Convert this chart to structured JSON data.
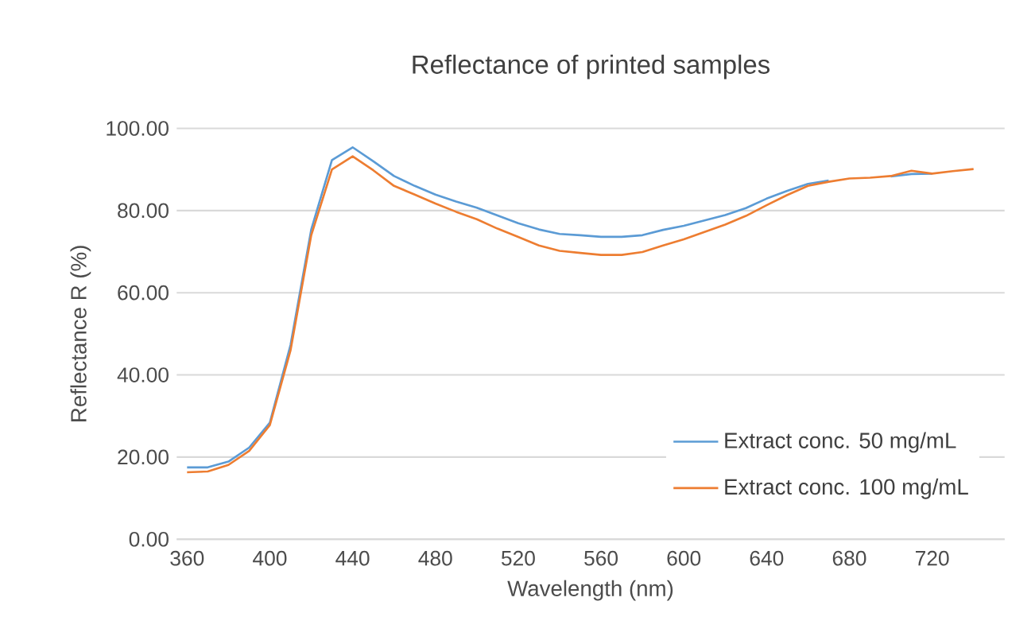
{
  "chart_data": {
    "type": "line",
    "title": "Reflectance of printed samples",
    "xlabel": "Wavelength (nm)",
    "ylabel": "Reflectance  R (%)",
    "x": [
      360,
      370,
      380,
      390,
      400,
      410,
      420,
      430,
      440,
      450,
      460,
      470,
      480,
      490,
      500,
      510,
      520,
      530,
      540,
      550,
      560,
      570,
      580,
      590,
      600,
      610,
      620,
      630,
      640,
      650,
      660,
      670,
      680,
      690,
      700,
      710,
      720,
      730,
      740
    ],
    "series": [
      {
        "name": "Extract conc. 50 mg/mL",
        "color": "#5b9bd5",
        "values": [
          17.5,
          17.5,
          18.9,
          22.3,
          28.4,
          47.3,
          75.4,
          92.3,
          95.4,
          92.0,
          88.4,
          86.0,
          83.9,
          82.2,
          80.7,
          78.8,
          76.9,
          75.4,
          74.3,
          74.0,
          73.6,
          73.6,
          74.0,
          75.3,
          76.3,
          77.6,
          78.9,
          80.6,
          82.9,
          84.8,
          86.5,
          87.3,
          null,
          null,
          88.3,
          88.9,
          89.0,
          null,
          null
        ]
      },
      {
        "name": "Extract conc. 100 mg/mL",
        "color": "#ed7d31",
        "values": [
          16.3,
          16.5,
          18.1,
          21.5,
          27.8,
          46.0,
          74.0,
          90.0,
          93.2,
          89.8,
          86.0,
          83.9,
          81.7,
          79.7,
          77.9,
          75.6,
          73.6,
          71.5,
          70.2,
          69.7,
          69.2,
          69.2,
          69.9,
          71.5,
          73.0,
          74.8,
          76.6,
          78.7,
          81.3,
          83.8,
          86.0,
          87.0,
          87.8,
          88.0,
          88.4,
          89.7,
          89.0,
          89.6,
          90.1
        ]
      }
    ],
    "xlim": [
      355,
      755
    ],
    "xticks": [
      360,
      400,
      440,
      480,
      520,
      560,
      600,
      640,
      680,
      720
    ],
    "ylim": [
      0,
      100
    ],
    "yticks": [
      {
        "value": 0,
        "label": "0.00"
      },
      {
        "value": 20,
        "label": "20.00"
      },
      {
        "value": 40,
        "label": "40.00"
      },
      {
        "value": 60,
        "label": "60.00"
      },
      {
        "value": 80,
        "label": "80.00"
      },
      {
        "value": 100,
        "label": "100.00"
      }
    ],
    "grid": "y",
    "legend": "bottom right",
    "marker": "none",
    "line_style": "solid"
  }
}
